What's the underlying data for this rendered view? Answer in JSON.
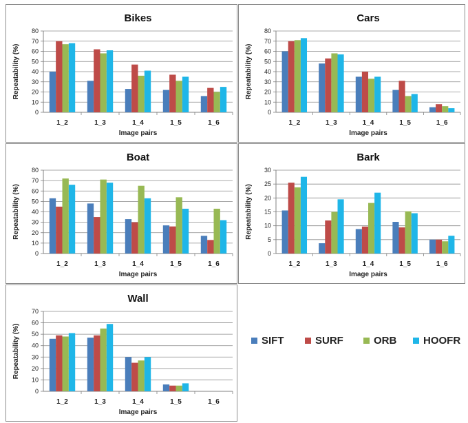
{
  "colors": {
    "SIFT": "#4a7ebb",
    "SURF": "#be4b48",
    "ORB": "#98b954",
    "HOOFR": "#1fb6e8"
  },
  "legend": [
    "SIFT",
    "SURF",
    "ORB",
    "HOOFR"
  ],
  "chart_data": [
    {
      "type": "bar",
      "title": "Bikes",
      "xlabel": "Image pairs",
      "ylabel": "Repeatability (%)",
      "ylim": [
        0,
        80
      ],
      "yticks": [
        "0",
        "10",
        "20",
        "30",
        "40",
        "50",
        "60",
        "70",
        "80"
      ],
      "categories": [
        "1_2",
        "1_3",
        "1_4",
        "1_5",
        "1_6"
      ],
      "grid": true,
      "series": [
        {
          "name": "SIFT",
          "values": [
            40,
            31,
            23,
            22,
            16
          ]
        },
        {
          "name": "SURF",
          "values": [
            70,
            62,
            47,
            37,
            24
          ]
        },
        {
          "name": "ORB",
          "values": [
            67,
            58,
            36,
            31,
            20
          ]
        },
        {
          "name": "HOOFR",
          "values": [
            68,
            61,
            41,
            35,
            25
          ]
        }
      ]
    },
    {
      "type": "bar",
      "title": "Cars",
      "xlabel": "Image pairs",
      "ylabel": "Repeatability (%)",
      "ylim": [
        0,
        80
      ],
      "yticks": [
        "0",
        "10",
        "20",
        "30",
        "40",
        "50",
        "60",
        "70",
        "80"
      ],
      "categories": [
        "1_2",
        "1_3",
        "1_4",
        "1_5",
        "1_6"
      ],
      "grid": true,
      "series": [
        {
          "name": "SIFT",
          "values": [
            60,
            48,
            35,
            22,
            5
          ]
        },
        {
          "name": "SURF",
          "values": [
            70,
            53,
            40,
            31,
            8
          ]
        },
        {
          "name": "ORB",
          "values": [
            71,
            58,
            33,
            16,
            6
          ]
        },
        {
          "name": "HOOFR",
          "values": [
            73,
            57,
            35,
            18,
            4
          ]
        }
      ]
    },
    {
      "type": "bar",
      "title": "Boat",
      "xlabel": "Image pairs",
      "ylabel": "Repeatability (%)",
      "ylim": [
        0,
        80
      ],
      "yticks": [
        "0",
        "10",
        "20",
        "30",
        "40",
        "50",
        "60",
        "70",
        "80"
      ],
      "categories": [
        "1_2",
        "1_3",
        "1_4",
        "1_5",
        "1_6"
      ],
      "grid": true,
      "series": [
        {
          "name": "SIFT",
          "values": [
            53,
            48,
            33,
            27,
            17
          ]
        },
        {
          "name": "SURF",
          "values": [
            45,
            35,
            30,
            26,
            13
          ]
        },
        {
          "name": "ORB",
          "values": [
            72,
            71,
            65,
            54,
            43
          ]
        },
        {
          "name": "HOOFR",
          "values": [
            66,
            68,
            53,
            43,
            32
          ]
        }
      ]
    },
    {
      "type": "bar",
      "title": "Bark",
      "xlabel": "Image pairs",
      "ylabel": "Repeatability (%)",
      "ylim": [
        0,
        30
      ],
      "yticks": [
        "0",
        "5",
        "10",
        "15",
        "20",
        "25",
        "30"
      ],
      "categories": [
        "1_2",
        "1_3",
        "1_4",
        "1_5",
        "1_6"
      ],
      "grid": true,
      "series": [
        {
          "name": "SIFT",
          "values": [
            15.5,
            3.7,
            8.8,
            11.4,
            5.0
          ]
        },
        {
          "name": "SURF",
          "values": [
            25.5,
            11.9,
            9.7,
            9.4,
            5.0
          ]
        },
        {
          "name": "ORB",
          "values": [
            23.8,
            15.0,
            18.2,
            15.2,
            4.4
          ]
        },
        {
          "name": "HOOFR",
          "values": [
            27.6,
            19.5,
            21.9,
            14.5,
            6.4
          ]
        }
      ]
    },
    {
      "type": "bar",
      "title": "Wall",
      "xlabel": "Image pairs",
      "ylabel": "Repeatability (%)",
      "ylim": [
        0,
        70
      ],
      "yticks": [
        "0",
        "10",
        "20",
        "30",
        "40",
        "50",
        "60",
        "70"
      ],
      "categories": [
        "1_2",
        "1_3",
        "1_4",
        "1_5",
        "1_6"
      ],
      "grid": true,
      "series": [
        {
          "name": "SIFT",
          "values": [
            46,
            47,
            30,
            6,
            0
          ]
        },
        {
          "name": "SURF",
          "values": [
            49,
            49,
            25,
            5,
            0
          ]
        },
        {
          "name": "ORB",
          "values": [
            48,
            55,
            27,
            5,
            0
          ]
        },
        {
          "name": "HOOFR",
          "values": [
            51,
            59,
            30,
            7,
            0
          ]
        }
      ]
    }
  ]
}
